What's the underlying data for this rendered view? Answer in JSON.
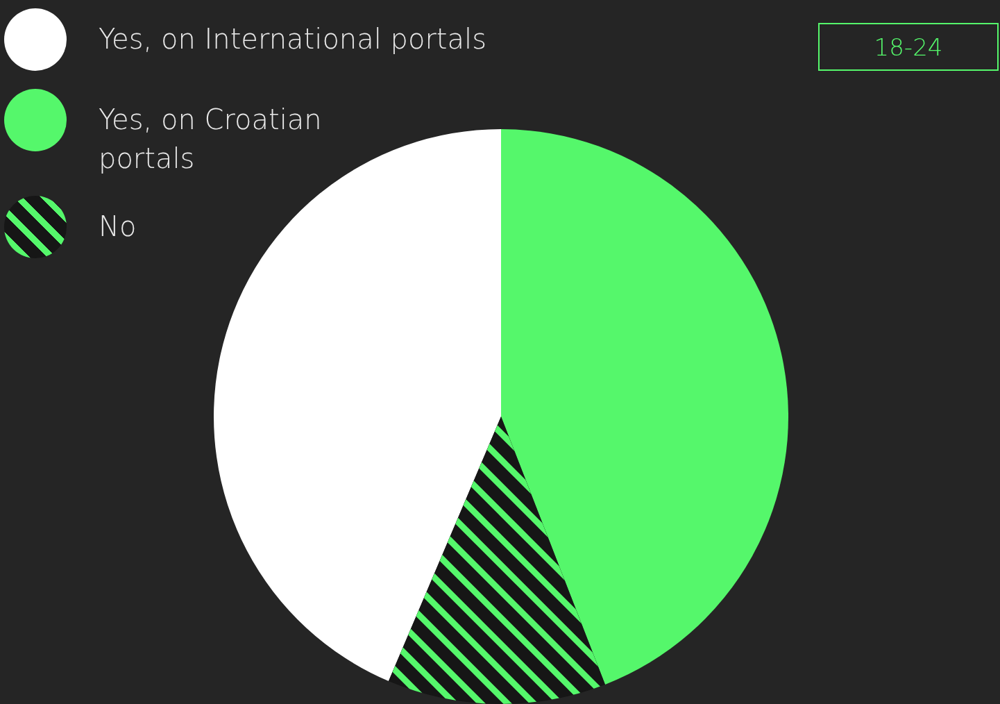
{
  "chart_data": {
    "type": "pie",
    "subtitle": "18-24",
    "legend": "top left",
    "categories": [
      "Yes, on International portals",
      "Yes, on Croatian portals",
      "No"
    ],
    "values": [
      43.6,
      44.1,
      12.3
    ],
    "colors": [
      "#ffffff",
      "#55f76b",
      "#161616"
    ]
  }
}
